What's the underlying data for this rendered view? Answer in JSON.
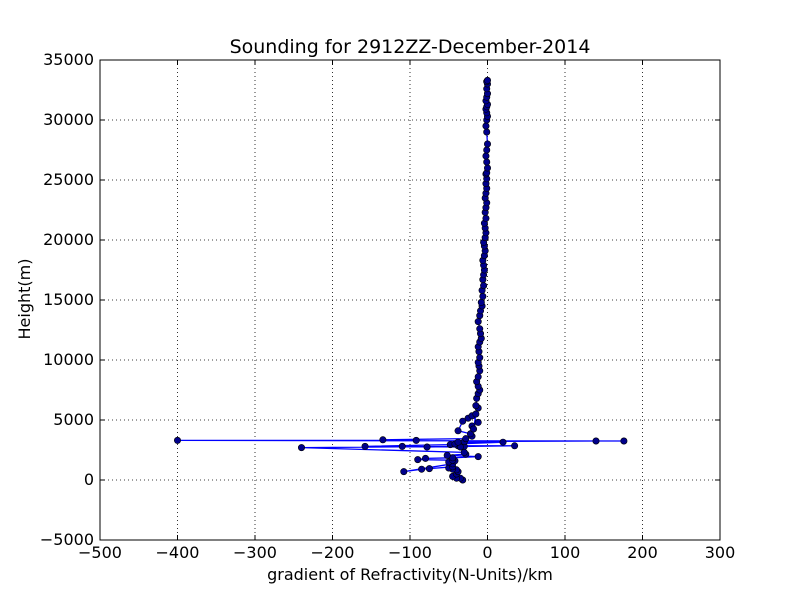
{
  "chart_data": {
    "type": "line",
    "title": "Sounding for 2912ZZ-December-2014",
    "xlabel": "gradient of Refractivity(N-Units)/km",
    "ylabel": "Height(m)",
    "xlim": [
      -500,
      300
    ],
    "ylim": [
      -5000,
      35000
    ],
    "xticks": [
      -500,
      -400,
      -300,
      -200,
      -100,
      0,
      100,
      200,
      300
    ],
    "xtick_labels": [
      "−500",
      "−400",
      "−300",
      "−200",
      "−100",
      "0",
      "100",
      "200",
      "300"
    ],
    "yticks": [
      -5000,
      0,
      5000,
      10000,
      15000,
      20000,
      25000,
      30000,
      35000
    ],
    "ytick_labels": [
      "−5000",
      "0",
      "5000",
      "10000",
      "15000",
      "20000",
      "25000",
      "30000",
      "35000"
    ],
    "grid": true,
    "line_color": "#0000ff",
    "marker_color": "#00008b",
    "series": [
      {
        "x": [
          -32,
          -35,
          -40,
          -45,
          -40,
          -38,
          -40,
          -45,
          -50,
          -45,
          -75,
          -85,
          -108,
          -45,
          -50,
          -42,
          -45,
          -90,
          -80,
          -45,
          -12,
          -52,
          -28,
          -30,
          -240,
          -30,
          -38,
          35,
          -78,
          -110,
          -35,
          -158,
          -48,
          -42,
          20,
          -38,
          -30,
          140,
          176,
          -400,
          -92,
          -135,
          -28,
          -20,
          -22,
          -38,
          -32,
          -25,
          -20,
          -12,
          -20,
          -18,
          -15,
          -12,
          -15,
          -14,
          -12,
          -10,
          -12,
          -14,
          -12,
          -10,
          -11,
          -12,
          -10,
          -11,
          -12,
          -10,
          -8,
          -9,
          -10,
          -12,
          -10,
          -9,
          -7,
          -8,
          -6,
          -7,
          -5,
          -6,
          -5,
          -4,
          -5,
          -6,
          -4,
          -3,
          -4,
          -5,
          -3,
          -2,
          -3,
          -4,
          -2,
          -3,
          -2,
          -1,
          -3,
          -2,
          -1,
          -2,
          -1,
          -2,
          -1,
          0,
          -1,
          -2,
          -1,
          0,
          -1,
          -2,
          -1,
          0,
          -1,
          -2,
          -1,
          0,
          -2,
          -1,
          0,
          -1,
          0,
          -1,
          0
        ],
        "y": [
          0,
          150,
          150,
          300,
          500,
          700,
          850,
          900,
          1000,
          1100,
          950,
          900,
          700,
          1350,
          1500,
          1600,
          1650,
          1700,
          1800,
          1850,
          1950,
          2050,
          2150,
          2300,
          2700,
          2800,
          2850,
          2850,
          2750,
          2800,
          2750,
          2800,
          2950,
          3000,
          3150,
          3150,
          3200,
          3250,
          3250,
          3300,
          3300,
          3350,
          3450,
          3650,
          3850,
          4100,
          4900,
          5150,
          5350,
          4800,
          4500,
          4250,
          5500,
          6000,
          6200,
          6800,
          7200,
          7500,
          7800,
          8200,
          8600,
          9100,
          9500,
          9800,
          10200,
          10700,
          11100,
          11500,
          11800,
          12200,
          12600,
          13200,
          13700,
          14100,
          14500,
          14800,
          15300,
          15800,
          16200,
          16700,
          17100,
          17500,
          17900,
          18300,
          18700,
          19100,
          19500,
          19800,
          20200,
          20600,
          21000,
          21400,
          21800,
          22300,
          22700,
          23100,
          23500,
          23900,
          24300,
          24700,
          25100,
          25500,
          25600,
          26000,
          26500,
          27000,
          27500,
          28000,
          29000,
          29500,
          30000,
          30300,
          30600,
          30900,
          31100,
          31300,
          31600,
          31900,
          32200,
          32600,
          33000,
          33200,
          33300
        ]
      }
    ]
  }
}
